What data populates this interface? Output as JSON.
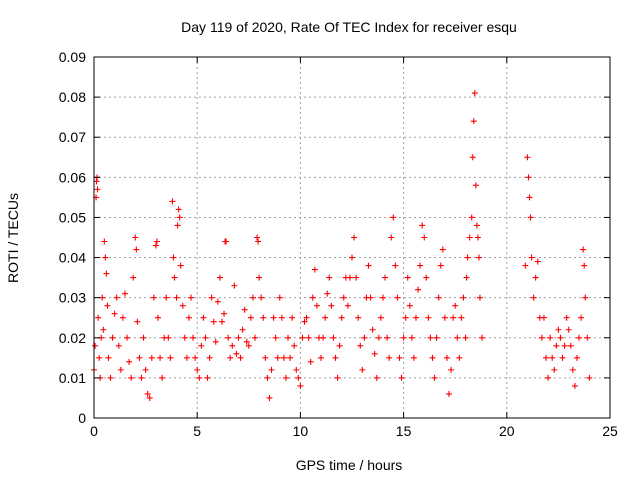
{
  "chart_data": {
    "type": "scatter",
    "title": "Day 119 of 2020, Rate Of TEC Index for receiver esqu",
    "xlabel": "GPS time / hours",
    "ylabel": "ROTI / TECUs",
    "xlim": [
      0,
      25
    ],
    "ylim": [
      0,
      0.09
    ],
    "xticks": [
      0,
      5,
      10,
      15,
      20,
      25
    ],
    "xtick_labels": [
      "0",
      "5",
      "10",
      "15",
      "20",
      "25"
    ],
    "yticks": [
      0,
      0.01,
      0.02,
      0.03,
      0.04,
      0.05,
      0.06,
      0.07,
      0.08,
      0.09
    ],
    "ytick_labels": [
      "0",
      "0.01",
      "0.02",
      "0.03",
      "0.04",
      "0.05",
      "0.06",
      "0.07",
      "0.08",
      "0.09"
    ],
    "grid": true,
    "marker": "+",
    "color": "#ff0000",
    "series": [
      {
        "points": [
          [
            0.0,
            0.012
          ],
          [
            0.05,
            0.018
          ],
          [
            0.1,
            0.055
          ],
          [
            0.12,
            0.059
          ],
          [
            0.15,
            0.06
          ],
          [
            0.17,
            0.057
          ],
          [
            0.2,
            0.025
          ],
          [
            0.25,
            0.015
          ],
          [
            0.3,
            0.01
          ],
          [
            0.35,
            0.02
          ],
          [
            0.4,
            0.03
          ],
          [
            0.45,
            0.022
          ],
          [
            0.5,
            0.044
          ],
          [
            0.55,
            0.04
          ],
          [
            0.6,
            0.036
          ],
          [
            0.65,
            0.028
          ],
          [
            0.7,
            0.015
          ],
          [
            0.8,
            0.01
          ],
          [
            0.9,
            0.02
          ],
          [
            1.0,
            0.026
          ],
          [
            1.1,
            0.03
          ],
          [
            1.2,
            0.018
          ],
          [
            1.3,
            0.012
          ],
          [
            1.4,
            0.025
          ],
          [
            1.5,
            0.031
          ],
          [
            1.6,
            0.02
          ],
          [
            1.7,
            0.014
          ],
          [
            1.8,
            0.01
          ],
          [
            1.9,
            0.035
          ],
          [
            2.0,
            0.045
          ],
          [
            2.05,
            0.042
          ],
          [
            2.1,
            0.024
          ],
          [
            2.2,
            0.015
          ],
          [
            2.3,
            0.01
          ],
          [
            2.4,
            0.02
          ],
          [
            2.5,
            0.012
          ],
          [
            2.6,
            0.006
          ],
          [
            2.7,
            0.005
          ],
          [
            2.8,
            0.015
          ],
          [
            2.9,
            0.03
          ],
          [
            3.0,
            0.043
          ],
          [
            3.05,
            0.044
          ],
          [
            3.1,
            0.025
          ],
          [
            3.2,
            0.015
          ],
          [
            3.3,
            0.01
          ],
          [
            3.4,
            0.02
          ],
          [
            3.5,
            0.03
          ],
          [
            3.6,
            0.02
          ],
          [
            3.7,
            0.015
          ],
          [
            3.8,
            0.054
          ],
          [
            3.85,
            0.04
          ],
          [
            3.9,
            0.035
          ],
          [
            4.0,
            0.03
          ],
          [
            4.05,
            0.048
          ],
          [
            4.1,
            0.052
          ],
          [
            4.15,
            0.05
          ],
          [
            4.2,
            0.038
          ],
          [
            4.3,
            0.028
          ],
          [
            4.4,
            0.02
          ],
          [
            4.5,
            0.015
          ],
          [
            4.6,
            0.025
          ],
          [
            4.7,
            0.03
          ],
          [
            4.8,
            0.02
          ],
          [
            4.9,
            0.015
          ],
          [
            5.0,
            0.012
          ],
          [
            5.1,
            0.01
          ],
          [
            5.2,
            0.018
          ],
          [
            5.3,
            0.025
          ],
          [
            5.4,
            0.02
          ],
          [
            5.5,
            0.01
          ],
          [
            5.6,
            0.015
          ],
          [
            5.7,
            0.03
          ],
          [
            5.8,
            0.024
          ],
          [
            5.9,
            0.019
          ],
          [
            6.0,
            0.029
          ],
          [
            6.1,
            0.035
          ],
          [
            6.2,
            0.024
          ],
          [
            6.3,
            0.026
          ],
          [
            6.35,
            0.044
          ],
          [
            6.4,
            0.044
          ],
          [
            6.5,
            0.02
          ],
          [
            6.6,
            0.015
          ],
          [
            6.7,
            0.018
          ],
          [
            6.8,
            0.033
          ],
          [
            6.9,
            0.016
          ],
          [
            7.0,
            0.02
          ],
          [
            7.1,
            0.015
          ],
          [
            7.2,
            0.022
          ],
          [
            7.3,
            0.027
          ],
          [
            7.4,
            0.019
          ],
          [
            7.5,
            0.018
          ],
          [
            7.6,
            0.025
          ],
          [
            7.7,
            0.03
          ],
          [
            7.8,
            0.02
          ],
          [
            7.9,
            0.045
          ],
          [
            7.95,
            0.044
          ],
          [
            8.0,
            0.035
          ],
          [
            8.1,
            0.03
          ],
          [
            8.2,
            0.025
          ],
          [
            8.3,
            0.015
          ],
          [
            8.4,
            0.01
          ],
          [
            8.5,
            0.005
          ],
          [
            8.6,
            0.012
          ],
          [
            8.7,
            0.025
          ],
          [
            8.8,
            0.02
          ],
          [
            8.9,
            0.015
          ],
          [
            9.0,
            0.03
          ],
          [
            9.1,
            0.025
          ],
          [
            9.2,
            0.015
          ],
          [
            9.3,
            0.01
          ],
          [
            9.4,
            0.02
          ],
          [
            9.5,
            0.015
          ],
          [
            9.6,
            0.025
          ],
          [
            9.7,
            0.018
          ],
          [
            9.8,
            0.012
          ],
          [
            9.9,
            0.01
          ],
          [
            10.0,
            0.008
          ],
          [
            10.1,
            0.02
          ],
          [
            10.2,
            0.024
          ],
          [
            10.3,
            0.025
          ],
          [
            10.4,
            0.02
          ],
          [
            10.5,
            0.014
          ],
          [
            10.6,
            0.03
          ],
          [
            10.7,
            0.037
          ],
          [
            10.8,
            0.028
          ],
          [
            10.9,
            0.02
          ],
          [
            11.0,
            0.015
          ],
          [
            11.1,
            0.02
          ],
          [
            11.2,
            0.025
          ],
          [
            11.3,
            0.031
          ],
          [
            11.4,
            0.035
          ],
          [
            11.5,
            0.028
          ],
          [
            11.6,
            0.02
          ],
          [
            11.7,
            0.015
          ],
          [
            11.8,
            0.01
          ],
          [
            11.9,
            0.018
          ],
          [
            12.0,
            0.025
          ],
          [
            12.1,
            0.03
          ],
          [
            12.2,
            0.035
          ],
          [
            12.3,
            0.028
          ],
          [
            12.4,
            0.035
          ],
          [
            12.5,
            0.04
          ],
          [
            12.6,
            0.045
          ],
          [
            12.7,
            0.035
          ],
          [
            12.8,
            0.025
          ],
          [
            12.9,
            0.018
          ],
          [
            13.0,
            0.012
          ],
          [
            13.1,
            0.02
          ],
          [
            13.2,
            0.03
          ],
          [
            13.3,
            0.038
          ],
          [
            13.4,
            0.03
          ],
          [
            13.5,
            0.022
          ],
          [
            13.6,
            0.016
          ],
          [
            13.7,
            0.01
          ],
          [
            13.8,
            0.02
          ],
          [
            13.9,
            0.025
          ],
          [
            14.0,
            0.03
          ],
          [
            14.1,
            0.035
          ],
          [
            14.2,
            0.02
          ],
          [
            14.3,
            0.015
          ],
          [
            14.4,
            0.045
          ],
          [
            14.5,
            0.05
          ],
          [
            14.6,
            0.038
          ],
          [
            14.7,
            0.03
          ],
          [
            14.8,
            0.015
          ],
          [
            14.9,
            0.01
          ],
          [
            15.0,
            0.02
          ],
          [
            15.1,
            0.025
          ],
          [
            15.2,
            0.035
          ],
          [
            15.3,
            0.028
          ],
          [
            15.4,
            0.02
          ],
          [
            15.5,
            0.015
          ],
          [
            15.6,
            0.025
          ],
          [
            15.7,
            0.032
          ],
          [
            15.8,
            0.038
          ],
          [
            15.9,
            0.048
          ],
          [
            16.0,
            0.045
          ],
          [
            16.1,
            0.035
          ],
          [
            16.2,
            0.025
          ],
          [
            16.3,
            0.02
          ],
          [
            16.4,
            0.015
          ],
          [
            16.5,
            0.01
          ],
          [
            16.6,
            0.02
          ],
          [
            16.7,
            0.03
          ],
          [
            16.8,
            0.038
          ],
          [
            16.9,
            0.042
          ],
          [
            17.0,
            0.025
          ],
          [
            17.1,
            0.015
          ],
          [
            17.2,
            0.006
          ],
          [
            17.3,
            0.012
          ],
          [
            17.4,
            0.025
          ],
          [
            17.5,
            0.028
          ],
          [
            17.6,
            0.02
          ],
          [
            17.7,
            0.015
          ],
          [
            17.8,
            0.025
          ],
          [
            17.9,
            0.03
          ],
          [
            18.0,
            0.02
          ],
          [
            18.05,
            0.035
          ],
          [
            18.1,
            0.04
          ],
          [
            18.2,
            0.045
          ],
          [
            18.3,
            0.05
          ],
          [
            18.35,
            0.065
          ],
          [
            18.4,
            0.074
          ],
          [
            18.45,
            0.081
          ],
          [
            18.5,
            0.058
          ],
          [
            18.55,
            0.048
          ],
          [
            18.6,
            0.045
          ],
          [
            18.65,
            0.04
          ],
          [
            18.7,
            0.03
          ],
          [
            18.8,
            0.02
          ],
          [
            20.9,
            0.038
          ],
          [
            21.0,
            0.065
          ],
          [
            21.05,
            0.06
          ],
          [
            21.1,
            0.055
          ],
          [
            21.15,
            0.05
          ],
          [
            21.2,
            0.04
          ],
          [
            21.3,
            0.03
          ],
          [
            21.4,
            0.035
          ],
          [
            21.5,
            0.039
          ],
          [
            21.6,
            0.025
          ],
          [
            21.7,
            0.02
          ],
          [
            21.8,
            0.025
          ],
          [
            21.9,
            0.015
          ],
          [
            22.0,
            0.01
          ],
          [
            22.1,
            0.02
          ],
          [
            22.2,
            0.015
          ],
          [
            22.3,
            0.012
          ],
          [
            22.4,
            0.018
          ],
          [
            22.5,
            0.022
          ],
          [
            22.6,
            0.02
          ],
          [
            22.7,
            0.015
          ],
          [
            22.8,
            0.018
          ],
          [
            22.9,
            0.025
          ],
          [
            23.0,
            0.022
          ],
          [
            23.1,
            0.018
          ],
          [
            23.2,
            0.012
          ],
          [
            23.3,
            0.008
          ],
          [
            23.4,
            0.015
          ],
          [
            23.5,
            0.02
          ],
          [
            23.6,
            0.025
          ],
          [
            23.7,
            0.042
          ],
          [
            23.75,
            0.038
          ],
          [
            23.8,
            0.03
          ],
          [
            23.9,
            0.02
          ],
          [
            24.0,
            0.01
          ]
        ]
      }
    ]
  }
}
